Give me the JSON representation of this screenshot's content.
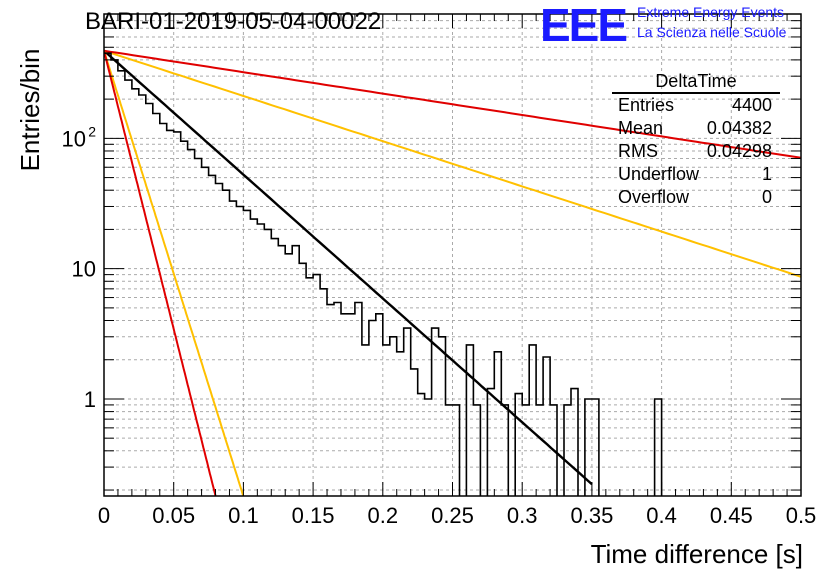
{
  "title": "BARI-01-2019-05-04-00022",
  "logo": {
    "mark": "EEE",
    "line1": "Extreme Energy Events",
    "line2": "La Scienza nelle Scuole"
  },
  "stats": {
    "name": "DeltaTime",
    "rows": [
      {
        "label": "Entries",
        "value": "4400"
      },
      {
        "label": "Mean",
        "value": "0.04382"
      },
      {
        "label": "RMS",
        "value": "0.04298"
      },
      {
        "label": "Underflow",
        "value": "1"
      },
      {
        "label": "Overflow",
        "value": "0"
      }
    ]
  },
  "chart_data": {
    "type": "histogram",
    "xlabel": "Time difference [s]",
    "ylabel": "Entries/bin",
    "xlim": [
      0,
      0.5
    ],
    "ylim": [
      0.18,
      900
    ],
    "yscale": "log",
    "grid": true,
    "xticks": [
      "0",
      "0.05",
      "0.1",
      "0.15",
      "0.2",
      "0.25",
      "0.3",
      "0.35",
      "0.4",
      "0.45",
      "0.5"
    ],
    "yticks": [
      {
        "value": 1,
        "label": "1"
      },
      {
        "value": 10,
        "label": "10"
      },
      {
        "value": 100,
        "label": "10",
        "sup": "2"
      }
    ],
    "bin_width": 0.005,
    "histogram": [
      450,
      400,
      330,
      280,
      240,
      215,
      185,
      155,
      130,
      115,
      112,
      95,
      82,
      70,
      60,
      52,
      45,
      40,
      33,
      30,
      28,
      24,
      22,
      20,
      17,
      15,
      13,
      15,
      11,
      8.5,
      9,
      7,
      5.3,
      5.5,
      4.5,
      4.5,
      5.5,
      2.6,
      4,
      4.5,
      2.6,
      3,
      2.3,
      3.5,
      1.7,
      1.1,
      1,
      3.5,
      3,
      0.9,
      0.9,
      0.1,
      2.6,
      0.9,
      0.1,
      1.2,
      2.3,
      0.9,
      0.1,
      1.1,
      0.9,
      2.6,
      0.9,
      2.1,
      0.9,
      0.1,
      0.9,
      1.2,
      0.1,
      1,
      1,
      0.1,
      0,
      0,
      0,
      0,
      0,
      0,
      0,
      1,
      0,
      0,
      0,
      0,
      0,
      0,
      0,
      0,
      0,
      0
    ],
    "fits": [
      {
        "color": "#000000",
        "width": 2.4,
        "y0": 470,
        "tau": 0.0457,
        "x_end": 0.35
      },
      {
        "color": "#ffc000",
        "width": 2,
        "y0": 470,
        "tau": 0.1252,
        "x_end": 0.5
      },
      {
        "color": "#e00000",
        "width": 2,
        "y0": 470,
        "tau": 0.2643,
        "x_end": 0.5
      },
      {
        "color": "#ffc000",
        "width": 2,
        "y0": 470,
        "tau": 0.0127,
        "x_end": 0.101
      },
      {
        "color": "#e00000",
        "width": 2,
        "y0": 470,
        "tau": 0.01017,
        "x_end": 0.08
      }
    ]
  }
}
